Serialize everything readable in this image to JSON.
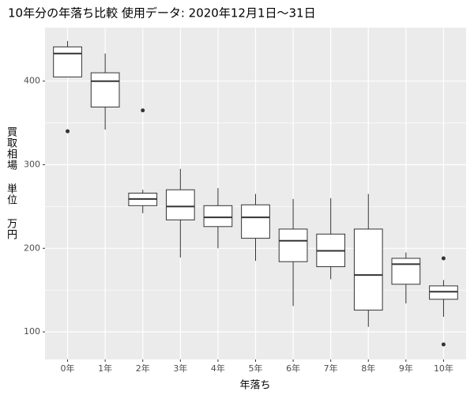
{
  "chart_data": {
    "type": "box",
    "title": "10年分の年落ち比較 使用データ: 2020年12月1日～31日",
    "x_label": "年落ち",
    "y_label": "買取相場 単位 万円",
    "categories": [
      "0年",
      "1年",
      "2年",
      "3年",
      "4年",
      "5年",
      "6年",
      "7年",
      "8年",
      "9年",
      "10年"
    ],
    "min": [
      405,
      342,
      242,
      189,
      200,
      185,
      131,
      163,
      106,
      134,
      118
    ],
    "q1": [
      405,
      369,
      251,
      234,
      226,
      212,
      184,
      178,
      126,
      157,
      139
    ],
    "median": [
      433,
      400,
      259,
      250,
      237,
      237,
      209,
      197,
      168,
      181,
      148
    ],
    "q3": [
      441,
      410,
      266,
      270,
      251,
      252,
      223,
      217,
      223,
      188,
      155
    ],
    "max": [
      448,
      433,
      270,
      295,
      272,
      265,
      259,
      260,
      265,
      195,
      162
    ],
    "outliers": [
      [
        340
      ],
      [],
      [
        365
      ],
      [],
      [],
      [],
      [],
      [],
      [],
      [],
      [
        188,
        85
      ]
    ],
    "ylim": [
      67,
      464
    ],
    "yticks": [
      100,
      200,
      300,
      400
    ],
    "grid": true,
    "color": "#333333"
  }
}
